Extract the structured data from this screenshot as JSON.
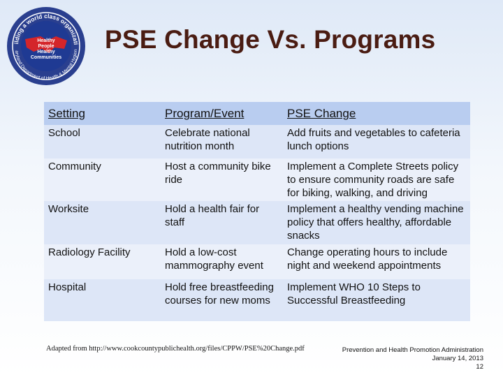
{
  "title": "PSE Change Vs. Programs",
  "logo": {
    "ring_text": "Building a world class organization",
    "bottom_text": "Maryland Department of Health & Mental Hygiene",
    "inner_lines": [
      "Healthy",
      "People",
      "Healthy",
      "Communities"
    ],
    "colors": {
      "outer": "#2a3f8f",
      "ring": "#ffffff",
      "map": "#d4252a",
      "inner": "#1f3a93"
    }
  },
  "table": {
    "headers": [
      "Setting",
      "Program/Event",
      "PSE Change"
    ],
    "rows": [
      [
        "School",
        "Celebrate national nutrition month",
        "Add fruits and vegetables to cafeteria lunch options"
      ],
      [
        "Community",
        "Host a community bike ride",
        "Implement a Complete Streets policy to ensure community roads are safe for biking, walking, and driving"
      ],
      [
        "Worksite",
        "Hold a health fair for staff",
        "Implement a healthy vending machine policy that offers healthy, affordable snacks"
      ],
      [
        "Radiology Facility",
        "Hold a low-cost mammography event",
        "Change operating hours to include night and weekend appointments"
      ],
      [
        "Hospital",
        "Hold free breastfeeding courses for new moms",
        "Implement WHO 10 Steps to Successful Breastfeeding"
      ]
    ]
  },
  "footer": {
    "source": "Adapted from http://www.cookcountypublichealth.org/files/CPPW/PSE%20Change.pdf",
    "org": "Prevention and Health Promotion Administration",
    "date": "January 14, 2013",
    "page": "12"
  }
}
